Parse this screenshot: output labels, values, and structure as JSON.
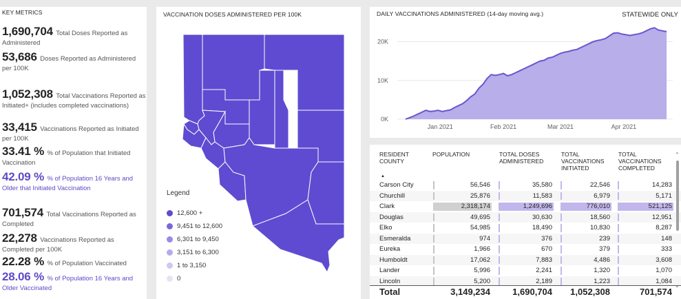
{
  "metrics": {
    "title": "KEY METRICS",
    "items": [
      {
        "value": "1,690,704",
        "desc": "Total Doses Reported as Administered"
      },
      {
        "value": "53,686",
        "desc": "Doses Reported as Administered per 100K"
      },
      {
        "value": "1,052,308",
        "desc": "Total Vaccinations Reported as Initiated+ (includes completed vaccinations)"
      },
      {
        "value": "33,415",
        "desc": "Vaccinations Reported as Initiated per 100K"
      },
      {
        "value": "33.41 %",
        "desc": "% of Population that Initiated Vaccination"
      },
      {
        "value": "42.09 %",
        "desc": "% of Population 16 Years and Older that Initiated Vaccination"
      },
      {
        "value": "701,574",
        "desc": "Total Vaccinations Reported as Completed"
      },
      {
        "value": "22,278",
        "desc": "Vaccinations Reported as Completed per 100K"
      },
      {
        "value": "22.28 %",
        "desc": "% of Population Vaccinated"
      },
      {
        "value": "28.06 %",
        "desc": "% of Population 16 Years and Older Vaccinated"
      }
    ]
  },
  "map": {
    "title": "VACCINATION DOSES ADMINISTERED PER 100K",
    "fill_color": "#5f4bd1",
    "legend": {
      "title": "Legend",
      "items": [
        {
          "label": "12,600 +",
          "color": "#5f4bd1"
        },
        {
          "label": "9,451 to 12,600",
          "color": "#7a68d8"
        },
        {
          "label": "6,301 to 9,450",
          "color": "#998be2"
        },
        {
          "label": "3,151 to 6,300",
          "color": "#b6acea"
        },
        {
          "label": "1 to 3,150",
          "color": "#cfc8f1"
        },
        {
          "label": "0",
          "color": "#e6e3f6"
        }
      ]
    }
  },
  "chart": {
    "title": "DAILY VACCINATIONS ADMINISTERED",
    "subtitle": "(14-day moving avg.)",
    "statewide": "STATEWIDE ONLY"
  },
  "chart_data": {
    "type": "area",
    "title": "DAILY VACCINATIONS ADMINISTERED (14-day moving avg.)",
    "xlabel": "",
    "ylabel": "",
    "x_tick_labels": [
      "Jan 2021",
      "Feb 2021",
      "Mar 2021",
      "Apr 2021"
    ],
    "x_tick_values": [
      31,
      62,
      90,
      121
    ],
    "y_tick_labels": [
      "0K",
      "10K",
      "20K"
    ],
    "y_tick_values": [
      0,
      10000,
      20000
    ],
    "ylim": [
      0,
      24000
    ],
    "xlim": [
      10,
      145
    ],
    "line_color": "#6a55cc",
    "area_color": "#b7aeea",
    "series": [
      {
        "x": [
          14,
          16,
          18,
          20,
          22,
          24,
          26,
          28,
          30,
          32,
          34,
          36,
          38,
          40,
          42,
          44,
          46,
          48,
          50,
          52,
          54,
          56,
          58,
          60,
          62,
          64,
          66,
          68,
          70,
          72,
          74,
          76,
          78,
          80,
          82,
          84,
          86,
          88,
          90,
          92,
          94,
          96,
          98,
          100,
          102,
          104,
          106,
          108,
          110,
          112,
          114,
          116,
          118,
          120,
          122,
          124,
          126,
          128,
          130,
          132,
          134,
          136,
          138,
          140,
          142
        ],
        "values": [
          0,
          400,
          800,
          1300,
          1800,
          2300,
          2000,
          2100,
          2300,
          2000,
          2200,
          2400,
          3000,
          3500,
          4000,
          4800,
          5800,
          6500,
          8000,
          9000,
          10500,
          11500,
          11300,
          11500,
          11800,
          11200,
          11500,
          12000,
          12500,
          13000,
          13500,
          14000,
          14500,
          15000,
          15200,
          15800,
          16000,
          16500,
          17000,
          17300,
          17500,
          17800,
          18000,
          18500,
          19000,
          19500,
          20000,
          20300,
          20500,
          20800,
          21500,
          22200,
          22300,
          22000,
          21800,
          21600,
          21800,
          22000,
          22300,
          22800,
          23300,
          23600,
          23000,
          22800,
          22600
        ]
      }
    ]
  },
  "table": {
    "headers": [
      "RESIDENT COUNTY",
      "POPULATION",
      "TOTAL DOSES ADMINISTERED",
      "TOTAL VACCINATIONS INITIATED",
      "TOTAL VACCINATIONS COMPLETED"
    ],
    "rows": [
      {
        "county": "Carson City",
        "population": "56,546",
        "doses": "35,580",
        "initiated": "22,546",
        "completed": "14,283",
        "pop_n": 56546,
        "doses_n": 35580,
        "init_n": 22546,
        "comp_n": 14283
      },
      {
        "county": "Churchill",
        "population": "25,876",
        "doses": "11,583",
        "initiated": "6,979",
        "completed": "5,171",
        "pop_n": 25876,
        "doses_n": 11583,
        "init_n": 6979,
        "comp_n": 5171
      },
      {
        "county": "Clark",
        "population": "2,318,174",
        "doses": "1,249,696",
        "initiated": "776,010",
        "completed": "521,125",
        "pop_n": 2318174,
        "doses_n": 1249696,
        "init_n": 776010,
        "comp_n": 521125
      },
      {
        "county": "Douglas",
        "population": "49,695",
        "doses": "30,630",
        "initiated": "18,560",
        "completed": "12,951",
        "pop_n": 49695,
        "doses_n": 30630,
        "init_n": 18560,
        "comp_n": 12951
      },
      {
        "county": "Elko",
        "population": "54,985",
        "doses": "18,490",
        "initiated": "10,830",
        "completed": "8,287",
        "pop_n": 54985,
        "doses_n": 18490,
        "init_n": 10830,
        "comp_n": 8287
      },
      {
        "county": "Esmeralda",
        "population": "974",
        "doses": "376",
        "initiated": "239",
        "completed": "148",
        "pop_n": 974,
        "doses_n": 376,
        "init_n": 239,
        "comp_n": 148
      },
      {
        "county": "Eureka",
        "population": "1,966",
        "doses": "670",
        "initiated": "379",
        "completed": "333",
        "pop_n": 1966,
        "doses_n": 670,
        "init_n": 379,
        "comp_n": 333
      },
      {
        "county": "Humboldt",
        "population": "17,062",
        "doses": "7,883",
        "initiated": "4,486",
        "completed": "3,608",
        "pop_n": 17062,
        "doses_n": 7883,
        "init_n": 4486,
        "comp_n": 3608
      },
      {
        "county": "Lander",
        "population": "5,996",
        "doses": "2,241",
        "initiated": "1,320",
        "completed": "1,070",
        "pop_n": 5996,
        "doses_n": 2241,
        "init_n": 1320,
        "comp_n": 1070
      },
      {
        "county": "Lincoln",
        "population": "5,200",
        "doses": "2,189",
        "initiated": "1,223",
        "completed": "1,084",
        "pop_n": 5200,
        "doses_n": 2189,
        "init_n": 1223,
        "comp_n": 1084
      }
    ],
    "totals": {
      "label": "Total",
      "population": "3,149,234",
      "doses": "1,690,704",
      "initiated": "1,052,308",
      "completed": "701,574"
    }
  }
}
